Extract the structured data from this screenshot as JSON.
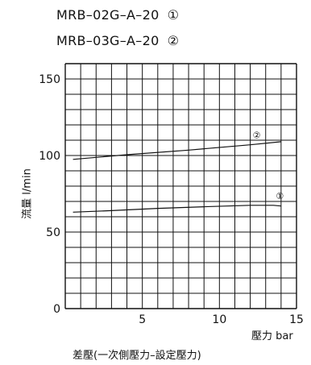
{
  "legend": [
    {
      "text": "MRB–02G–A–20",
      "marker": "①"
    },
    {
      "text": "MRB–03G–A–20",
      "marker": "②"
    }
  ],
  "chart_data": {
    "type": "line",
    "ylabel": "流量 l/min",
    "xlabel": "壓力 bar",
    "caption": "差壓(一次側壓力–設定壓力)",
    "xlim": [
      0,
      15
    ],
    "ylim": [
      0,
      160
    ],
    "xticks": [
      0,
      5,
      10,
      15
    ],
    "yticks": [
      0,
      50,
      100,
      150
    ],
    "grid": true,
    "series": [
      {
        "name": "①",
        "x": [
          0.5,
          3,
          6,
          9,
          12,
          13.5,
          14
        ],
        "y": [
          63,
          64,
          65.5,
          66.5,
          67.5,
          67.5,
          67
        ]
      },
      {
        "name": "②",
        "x": [
          0.5,
          4,
          8,
          12,
          14
        ],
        "y": [
          97.5,
          100.5,
          103.5,
          107,
          109
        ]
      }
    ]
  }
}
